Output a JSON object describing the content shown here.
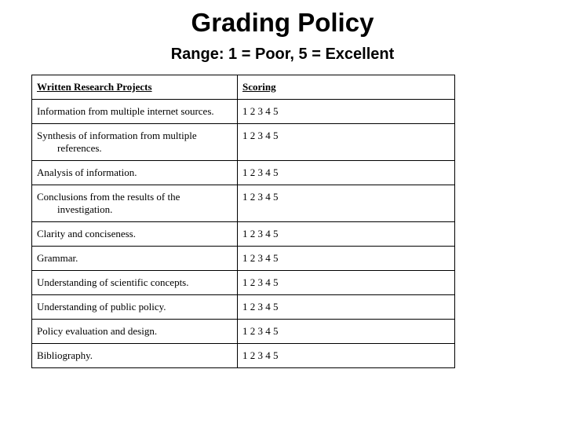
{
  "title": "Grading Policy",
  "subtitle": "Range: 1 = Poor, 5 = Excellent",
  "table": {
    "header": {
      "criteria": "Written Research Projects",
      "scoring": "Scoring"
    },
    "scoring_value": "1 2 3 4 5",
    "rows": [
      {
        "criteria": "Information from multiple internet sources."
      },
      {
        "criteria": "Synthesis of information from multiple references.",
        "indent": true
      },
      {
        "criteria": "Analysis of information."
      },
      {
        "criteria": "Conclusions from the results of the investigation.",
        "indent": true
      },
      {
        "criteria": "Clarity and conciseness."
      },
      {
        "criteria": "Grammar."
      },
      {
        "criteria": "Understanding of scientific concepts."
      },
      {
        "criteria": "Understanding of public policy."
      },
      {
        "criteria": "Policy evaluation and design."
      },
      {
        "criteria": "Bibliography."
      }
    ]
  },
  "colors": {
    "background": "#ffffff",
    "text": "#000000",
    "border": "#000000"
  }
}
